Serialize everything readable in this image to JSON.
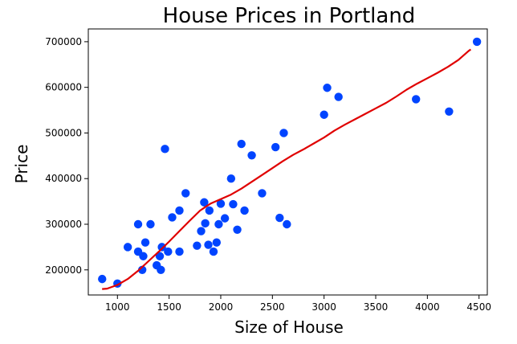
{
  "chart_data": {
    "type": "scatter",
    "title": "House Prices in Portland",
    "xlabel": "Size of House",
    "ylabel": "Price",
    "xlim": [
      718,
      4580
    ],
    "ylim": [
      145000,
      728000
    ],
    "xticks": [
      1000,
      1500,
      2000,
      2500,
      3000,
      3500,
      4000,
      4500
    ],
    "yticks": [
      200000,
      300000,
      400000,
      500000,
      600000,
      700000
    ],
    "xtick_labels": [
      "1000",
      "1500",
      "2000",
      "2500",
      "3000",
      "3500",
      "4000",
      "4500"
    ],
    "ytick_labels": [
      "200000",
      "300000",
      "400000",
      "500000",
      "600000",
      "700000"
    ],
    "grid": false,
    "series": [
      {
        "type": "scatter",
        "color": "#0044ff",
        "points": [
          [
            852,
            180000
          ],
          [
            1000,
            170000
          ],
          [
            1100,
            250000
          ],
          [
            1200,
            300000
          ],
          [
            1200,
            240000
          ],
          [
            1240,
            200000
          ],
          [
            1250,
            230000
          ],
          [
            1270,
            260000
          ],
          [
            1320,
            300000
          ],
          [
            1380,
            210000
          ],
          [
            1410,
            230000
          ],
          [
            1420,
            200000
          ],
          [
            1430,
            250000
          ],
          [
            1460,
            465000
          ],
          [
            1490,
            240000
          ],
          [
            1530,
            315000
          ],
          [
            1600,
            330000
          ],
          [
            1600,
            240000
          ],
          [
            1660,
            368000
          ],
          [
            1770,
            253000
          ],
          [
            1810,
            285000
          ],
          [
            1840,
            348000
          ],
          [
            1850,
            302000
          ],
          [
            1880,
            255000
          ],
          [
            1890,
            330000
          ],
          [
            1930,
            240000
          ],
          [
            1960,
            260000
          ],
          [
            1980,
            300000
          ],
          [
            2000,
            345000
          ],
          [
            2040,
            313000
          ],
          [
            2100,
            400000
          ],
          [
            2120,
            344000
          ],
          [
            2160,
            288000
          ],
          [
            2200,
            476000
          ],
          [
            2230,
            330000
          ],
          [
            2300,
            451000
          ],
          [
            2400,
            368000
          ],
          [
            2530,
            469000
          ],
          [
            2570,
            314000
          ],
          [
            2610,
            500000
          ],
          [
            2640,
            300000
          ],
          [
            3000,
            540000
          ],
          [
            3030,
            599000
          ],
          [
            3140,
            579000
          ],
          [
            3890,
            574000
          ],
          [
            4210,
            547000
          ],
          [
            4480,
            700000
          ]
        ]
      },
      {
        "type": "line",
        "color": "#e00000",
        "points": [
          [
            852,
            158000
          ],
          [
            900,
            159000
          ],
          [
            1000,
            167000
          ],
          [
            1100,
            180000
          ],
          [
            1200,
            198000
          ],
          [
            1300,
            219000
          ],
          [
            1400,
            240000
          ],
          [
            1500,
            262000
          ],
          [
            1600,
            285000
          ],
          [
            1700,
            308000
          ],
          [
            1800,
            330000
          ],
          [
            1900,
            345000
          ],
          [
            2000,
            355000
          ],
          [
            2100,
            365000
          ],
          [
            2200,
            378000
          ],
          [
            2300,
            393000
          ],
          [
            2400,
            408000
          ],
          [
            2500,
            423000
          ],
          [
            2600,
            438000
          ],
          [
            2700,
            452000
          ],
          [
            2800,
            464000
          ],
          [
            2900,
            477000
          ],
          [
            3000,
            490000
          ],
          [
            3100,
            505000
          ],
          [
            3200,
            518000
          ],
          [
            3300,
            530000
          ],
          [
            3400,
            542000
          ],
          [
            3500,
            554000
          ],
          [
            3600,
            566000
          ],
          [
            3700,
            580000
          ],
          [
            3800,
            595000
          ],
          [
            3900,
            608000
          ],
          [
            4000,
            620000
          ],
          [
            4100,
            632000
          ],
          [
            4200,
            645000
          ],
          [
            4300,
            660000
          ],
          [
            4400,
            680000
          ],
          [
            4420,
            683000
          ]
        ]
      }
    ]
  }
}
